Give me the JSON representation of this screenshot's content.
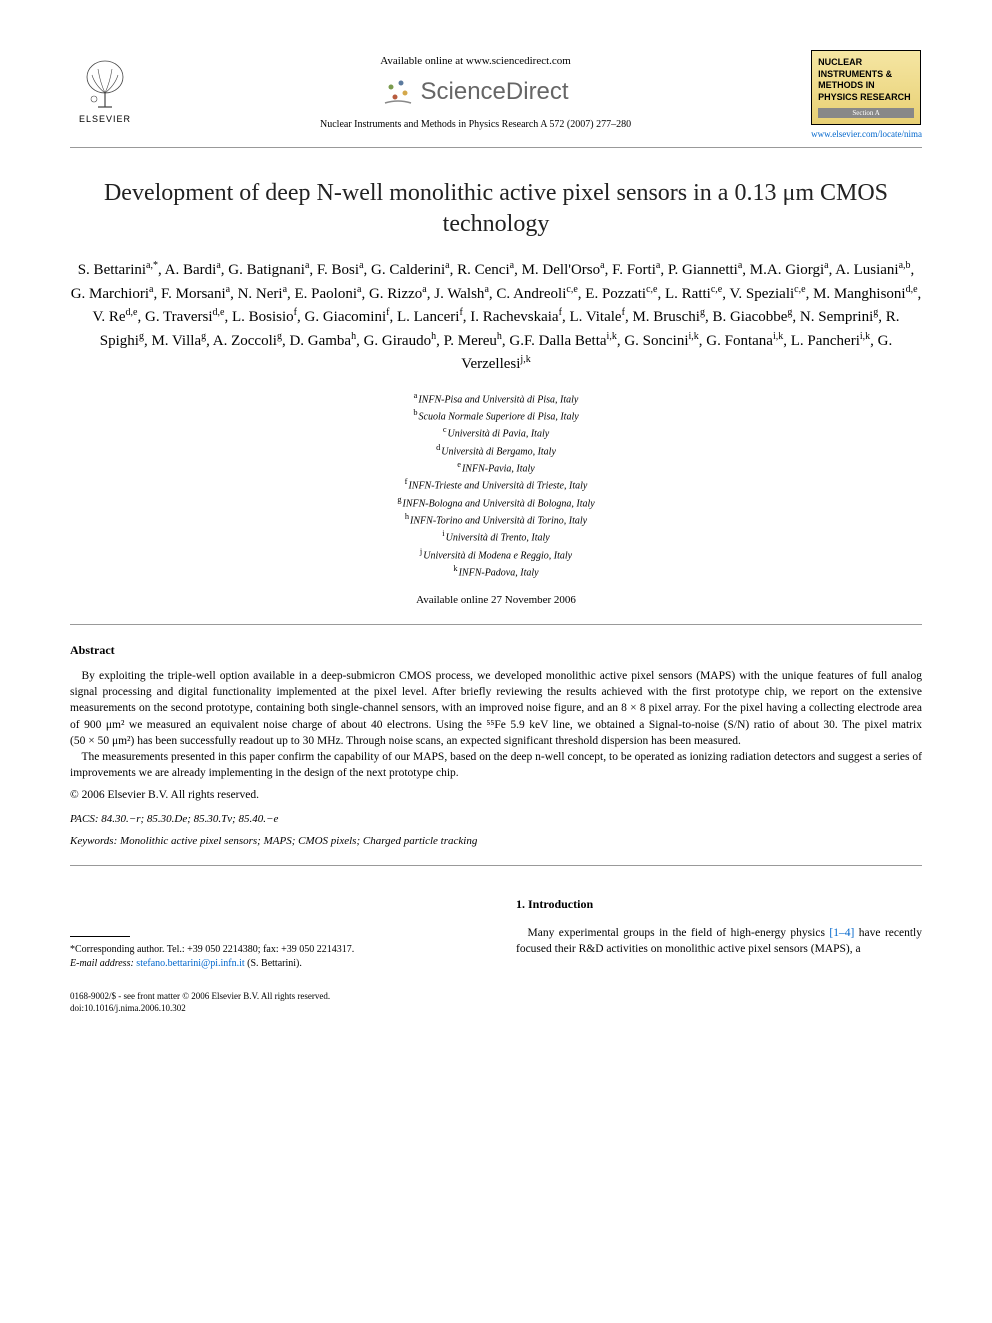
{
  "header": {
    "elsevier_label": "ELSEVIER",
    "available_online": "Available online at www.sciencedirect.com",
    "sd_brand": "ScienceDirect",
    "journal_ref": "Nuclear Instruments and Methods in Physics Research A 572 (2007) 277–280",
    "journal_box_title": "NUCLEAR INSTRUMENTS & METHODS IN PHYSICS RESEARCH",
    "journal_box_section": "Section A",
    "journal_url": "www.elsevier.com/locate/nima"
  },
  "title": "Development of deep N-well monolithic active pixel sensors in a 0.13 μm CMOS technology",
  "authors_html": "S. Bettarini<sup>a,*</sup>, A. Bardi<sup>a</sup>, G. Batignani<sup>a</sup>, F. Bosi<sup>a</sup>, G. Calderini<sup>a</sup>, R. Cenci<sup>a</sup>, M. Dell'Orso<sup>a</sup>, F. Forti<sup>a</sup>, P. Giannetti<sup>a</sup>, M.A. Giorgi<sup>a</sup>, A. Lusiani<sup>a,b</sup>, G. Marchiori<sup>a</sup>, F. Morsani<sup>a</sup>, N. Neri<sup>a</sup>, E. Paoloni<sup>a</sup>, G. Rizzo<sup>a</sup>, J. Walsh<sup>a</sup>, C. Andreoli<sup>c,e</sup>, E. Pozzati<sup>c,e</sup>, L. Ratti<sup>c,e</sup>, V. Speziali<sup>c,e</sup>, M. Manghisoni<sup>d,e</sup>, V. Re<sup>d,e</sup>, G. Traversi<sup>d,e</sup>, L. Bosisio<sup>f</sup>, G. Giacomini<sup>f</sup>, L. Lanceri<sup>f</sup>, I. Rachevskaia<sup>f</sup>, L. Vitale<sup>f</sup>, M. Bruschi<sup>g</sup>, B. Giacobbe<sup>g</sup>, N. Semprini<sup>g</sup>, R. Spighi<sup>g</sup>, M. Villa<sup>g</sup>, A. Zoccoli<sup>g</sup>, D. Gamba<sup>h</sup>, G. Giraudo<sup>h</sup>, P. Mereu<sup>h</sup>, G.F. Dalla Betta<sup>i,k</sup>, G. Soncini<sup>i,k</sup>, G. Fontana<sup>i,k</sup>, L. Pancheri<sup>i,k</sup>, G. Verzellesi<sup>j,k</sup>",
  "affiliations": [
    {
      "sup": "a",
      "text": "INFN-Pisa and Università di Pisa, Italy"
    },
    {
      "sup": "b",
      "text": "Scuola Normale Superiore di Pisa, Italy"
    },
    {
      "sup": "c",
      "text": "Università di Pavia, Italy"
    },
    {
      "sup": "d",
      "text": "Università di Bergamo, Italy"
    },
    {
      "sup": "e",
      "text": "INFN-Pavia, Italy"
    },
    {
      "sup": "f",
      "text": "INFN-Trieste and Università di Trieste, Italy"
    },
    {
      "sup": "g",
      "text": "INFN-Bologna and Università di Bologna, Italy"
    },
    {
      "sup": "h",
      "text": "INFN-Torino and Università di Torino, Italy"
    },
    {
      "sup": "i",
      "text": "Università di Trento, Italy"
    },
    {
      "sup": "j",
      "text": "Università di Modena e Reggio, Italy"
    },
    {
      "sup": "k",
      "text": "INFN-Padova, Italy"
    }
  ],
  "available_date": "Available online 27 November 2006",
  "abstract": {
    "heading": "Abstract",
    "p1": "By exploiting the triple-well option available in a deep-submicron CMOS process, we developed monolithic active pixel sensors (MAPS) with the unique features of full analog signal processing and digital functionality implemented at the pixel level. After briefly reviewing the results achieved with the first prototype chip, we report on the extensive measurements on the second prototype, containing both single-channel sensors, with an improved noise figure, and an 8 × 8 pixel array. For the pixel having a collecting electrode area of 900 μm² we measured an equivalent noise charge of about 40 electrons. Using the ⁵⁵Fe 5.9 keV line, we obtained a Signal-to-noise (S/N) ratio of about 30. The pixel matrix (50 × 50 μm²) has been successfully readout up to 30 MHz. Through noise scans, an expected significant threshold dispersion has been measured.",
    "p2": "The measurements presented in this paper confirm the capability of our MAPS, based on the deep n-well concept, to be operated as ionizing radiation detectors and suggest a series of improvements we are already implementing in the design of the next prototype chip.",
    "copyright": "© 2006 Elsevier B.V. All rights reserved."
  },
  "pacs": {
    "label": "PACS:",
    "codes": "84.30.−r; 85.30.De; 85.30.Tv; 85.40.−e"
  },
  "keywords": {
    "label": "Keywords:",
    "text": "Monolithic active pixel sensors; MAPS; CMOS pixels; Charged particle tracking"
  },
  "footnote": {
    "corresponding": "*Corresponding author. Tel.: +39 050 2214380; fax: +39 050 2214317.",
    "email_label": "E-mail address:",
    "email": "stefano.bettarini@pi.infn.it",
    "email_suffix": "(S. Bettarini)."
  },
  "intro": {
    "heading": "1. Introduction",
    "text": "Many experimental groups in the field of high-energy physics [1–4] have recently focused their R&D activities on monolithic active pixel sensors (MAPS), a"
  },
  "footer": {
    "line1": "0168-9002/$ - see front matter © 2006 Elsevier B.V. All rights reserved.",
    "line2": "doi:10.1016/j.nima.2006.10.302"
  },
  "colors": {
    "link": "#0066cc",
    "text": "#000000",
    "sd_gray": "#666666",
    "journal_bg_top": "#f5e6a3",
    "journal_bg_bottom": "#e8d074",
    "rule": "#999999"
  },
  "typography": {
    "title_fontsize": 24,
    "authors_fontsize": 15,
    "affil_fontsize": 10,
    "body_fontsize": 11.5,
    "footnote_fontsize": 10,
    "font_family": "Georgia, Times New Roman, serif"
  }
}
